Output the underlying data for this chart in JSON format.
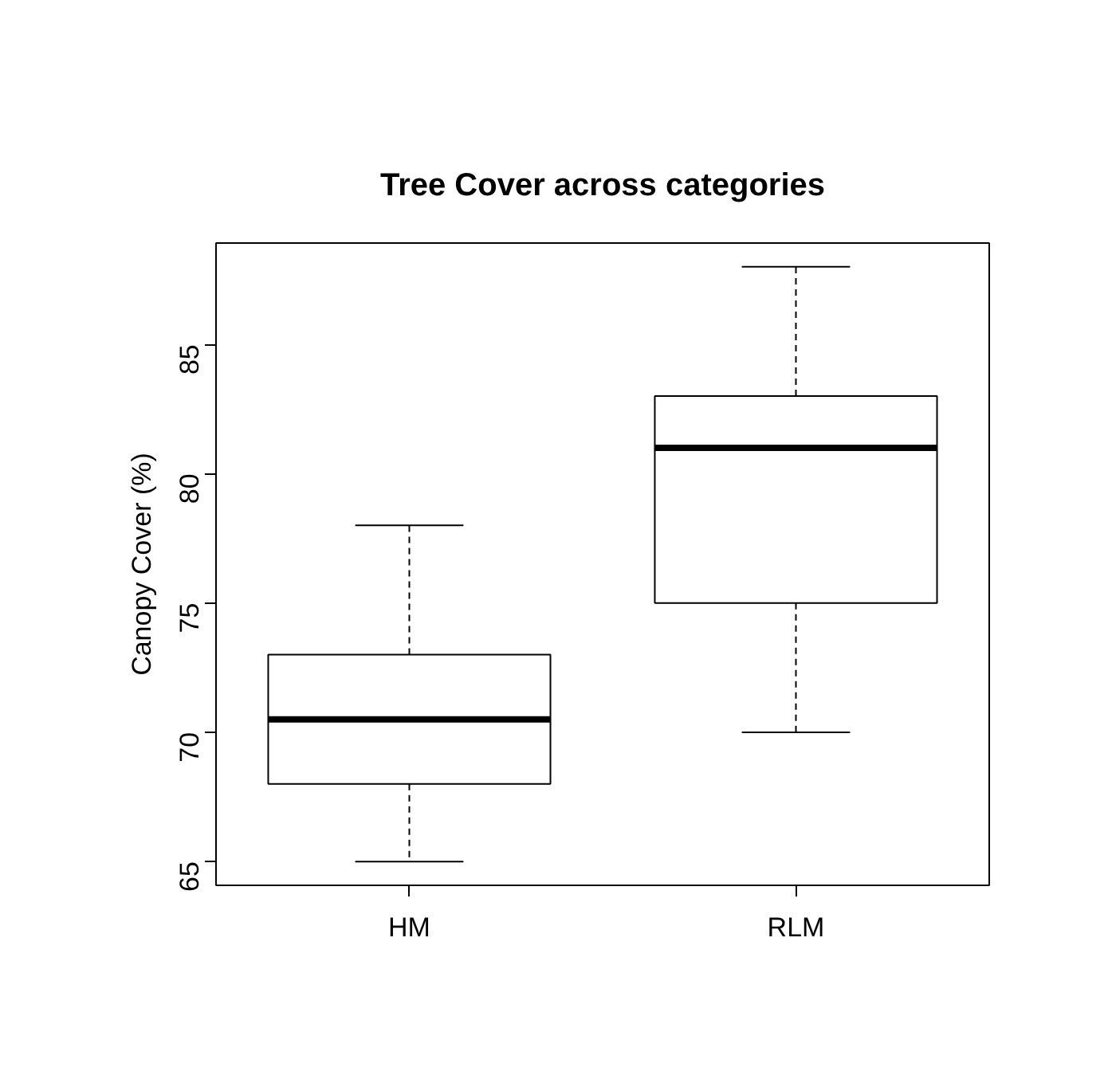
{
  "chart_data": {
    "type": "box",
    "title": "Tree Cover across categories",
    "ylabel": "Canopy Cover (%)",
    "categories": [
      "HM",
      "RLM"
    ],
    "boxes": [
      {
        "low": 65,
        "q1": 68,
        "median": 70.5,
        "q3": 73,
        "high": 78
      },
      {
        "low": 70,
        "q1": 75,
        "median": 81,
        "q3": 83,
        "high": 88
      }
    ],
    "ylim": [
      64.08,
      88.92
    ],
    "yticks": [
      65,
      70,
      75,
      80,
      85
    ],
    "grid": false
  }
}
